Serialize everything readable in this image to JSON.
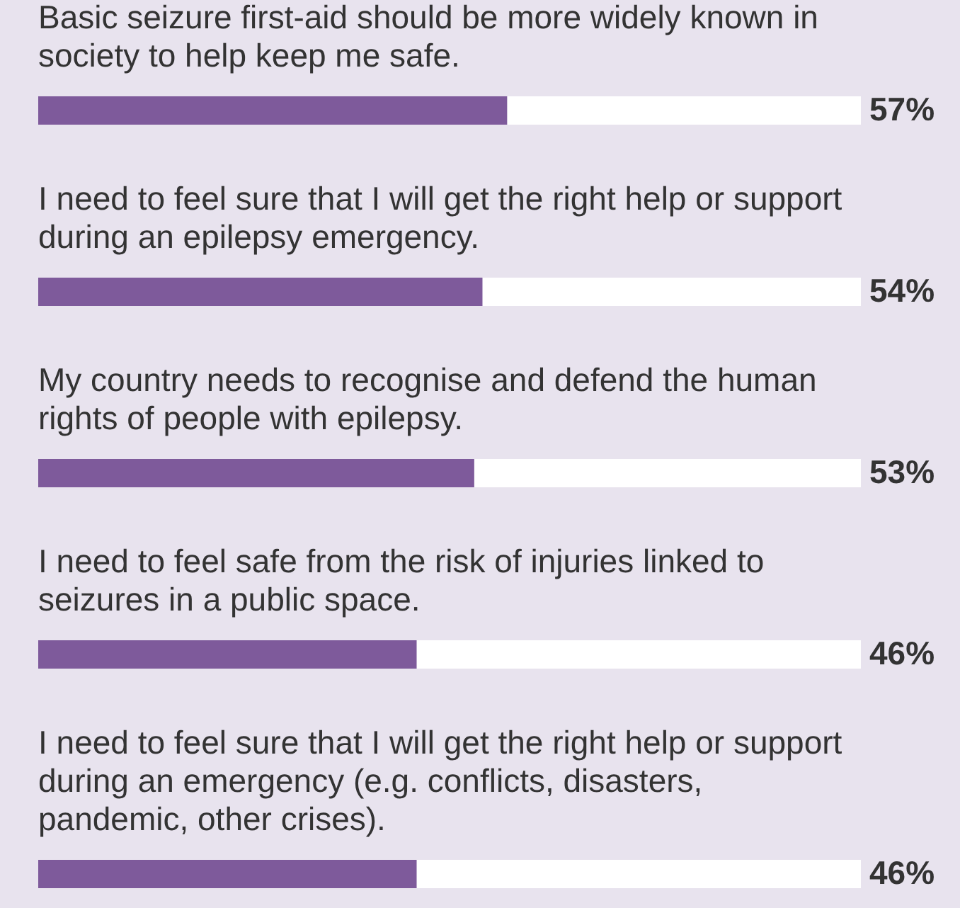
{
  "chart_data": {
    "type": "bar",
    "orientation": "horizontal",
    "tick_labels": false,
    "xlim": [
      0,
      100
    ],
    "color": "#7e5a9b",
    "categories": [
      "Basic seizure first-aid should be more widely known in society to help keep me safe.",
      "I need to feel sure that I will get the right help or support during an epilepsy emergency.",
      "My country needs to recognise and defend the human rights of people with epilepsy.",
      "I need to feel safe from the risk of injuries linked to seizures in a public space.",
      "I need to feel sure that I will get the right help or support during an emergency (e.g. conflicts, disasters, pandemic, other crises)."
    ],
    "values": [
      57,
      54,
      53,
      46,
      46
    ],
    "value_labels": [
      "57%",
      "54%",
      "53%",
      "46%",
      "46%"
    ]
  }
}
